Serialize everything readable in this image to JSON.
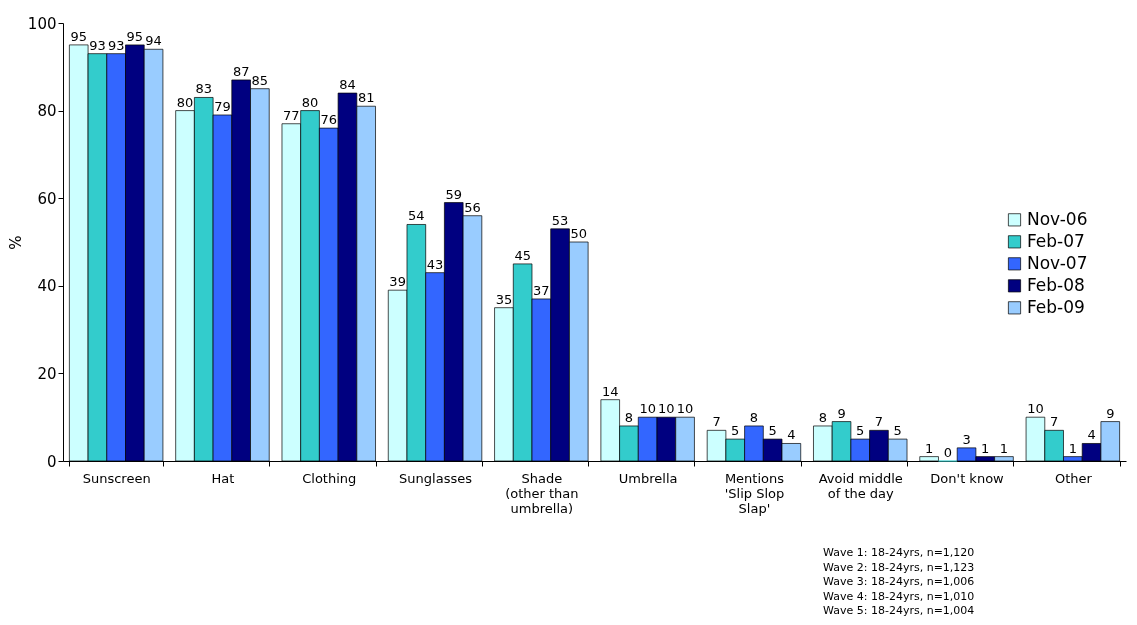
{
  "chart_data": {
    "type": "bar",
    "ylabel": "%",
    "categories": [
      "Sunscreen",
      "Hat",
      "Clothing",
      "Sunglasses",
      "Shade\n(other than\numbrella)",
      "Umbrella",
      "Mentions\n'Slip Slop\nSlap'",
      "Avoid middle\nof the day",
      "Don't know",
      "Other"
    ],
    "series": [
      {
        "name": "Nov-06",
        "color": "#ccffff",
        "values": [
          95,
          80,
          77,
          39,
          35,
          14,
          7,
          8,
          1,
          10
        ]
      },
      {
        "name": "Feb-07",
        "color": "#33cccc",
        "values": [
          93,
          83,
          80,
          54,
          45,
          8,
          5,
          9,
          0,
          7
        ]
      },
      {
        "name": "Nov-07",
        "color": "#3366ff",
        "values": [
          93,
          79,
          76,
          43,
          37,
          10,
          8,
          5,
          3,
          1
        ]
      },
      {
        "name": "Feb-08",
        "color": "#000080",
        "values": [
          95,
          87,
          84,
          59,
          53,
          10,
          5,
          7,
          1,
          4
        ]
      },
      {
        "name": "Feb-09",
        "color": "#99ccff",
        "values": [
          94,
          85,
          81,
          56,
          50,
          10,
          4,
          5,
          1,
          9
        ]
      }
    ],
    "ylim": [
      0,
      100
    ],
    "yticks": [
      0,
      20,
      40,
      60,
      80,
      100
    ],
    "grid": false,
    "legend": "right",
    "data_labels": true,
    "annotations": [
      "Wave 1: 18-24yrs, n=1,120",
      "Wave 2: 18-24yrs, n=1,123",
      "Wave 3: 18-24yrs, n=1,006",
      "Wave 4: 18-24yrs, n=1,010",
      "Wave 5: 18-24yrs, n=1,004"
    ]
  }
}
